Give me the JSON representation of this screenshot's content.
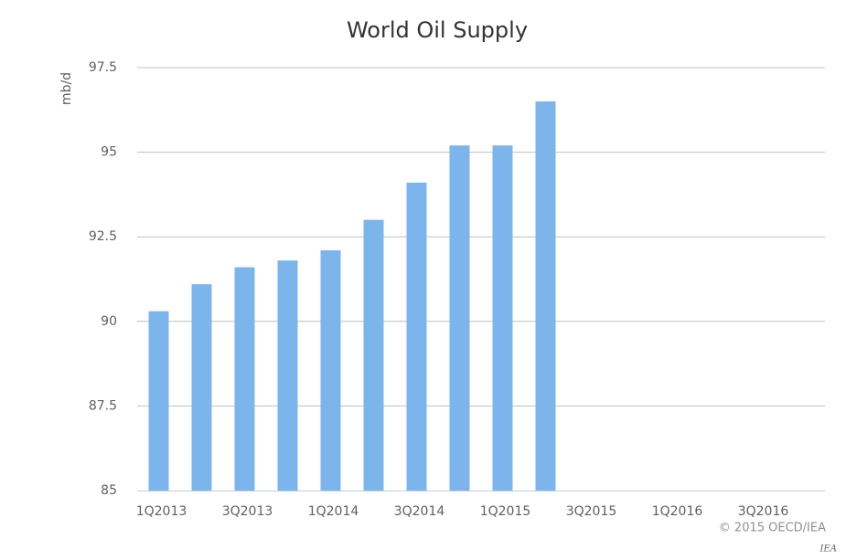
{
  "chart_data": {
    "type": "bar",
    "title": "World Oil Supply",
    "y_label": "mb/d",
    "categories": [
      "1Q2013",
      null,
      "3Q2013",
      null,
      "1Q2014",
      null,
      "3Q2014",
      null,
      "1Q2015",
      null,
      "3Q2015",
      null,
      "1Q2016",
      null,
      "3Q2016",
      null
    ],
    "values": [
      90.3,
      91.1,
      91.6,
      91.8,
      92.1,
      93.0,
      94.1,
      95.2,
      95.2,
      96.5,
      null,
      null,
      null,
      null,
      null,
      null
    ],
    "color": "#7cb5ec",
    "ylim": [
      85,
      97.5
    ],
    "yticks": [
      85,
      87.5,
      90,
      92.5,
      95,
      97.5
    ],
    "grid": true,
    "credit": "© 2015 OECD/IEA",
    "source_mark": "IEA"
  }
}
